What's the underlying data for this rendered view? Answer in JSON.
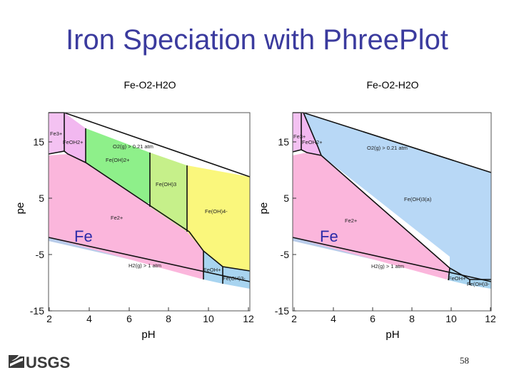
{
  "slide": {
    "title": "Iron Speciation with PhreePlot",
    "page_number": "58",
    "logo_text": "USGS"
  },
  "diagrams": [
    {
      "title": "Fe-O2-H2O",
      "x_label": "pH",
      "y_label": "pe",
      "x_ticks": [
        "2",
        "4",
        "6",
        "8",
        "10",
        "12"
      ],
      "y_ticks": [
        "15",
        "5",
        "-5",
        "-15"
      ],
      "big_label": "Fe",
      "regions": {
        "fe3": "Fe3+",
        "feoh2": "FeOH2+",
        "o2": "O2(g) > 0.21 atm",
        "feoh2p": "Fe(OH)2+",
        "feoh3": "Fe(OH)3",
        "feoh4": "Fe(OH)4-",
        "fe2": "Fe2+",
        "h2": "H2(g) > 1 atm",
        "feohp": "FeOH+",
        "feoh3m": "Fe(OH)3-"
      }
    },
    {
      "title": "Fe-O2-H2O",
      "x_label": "pH",
      "y_label": "pe",
      "x_ticks": [
        "2",
        "4",
        "6",
        "8",
        "10",
        "12"
      ],
      "y_ticks": [
        "15",
        "5",
        "-5",
        "-15"
      ],
      "big_label": "Fe",
      "regions": {
        "fe3": "Fe3+",
        "feoh2": "FeOH2+",
        "o2": "O2(g) > 0.21 atm",
        "feoh3a": "Fe(OH)3(a)",
        "fe2": "Fe2+",
        "h2": "H2(g) > 1 atm",
        "feohp": "FeOH+",
        "feoh3m": "Fe(OH)3-"
      }
    }
  ],
  "colors": {
    "title": "#3b3b9e",
    "fe2": "#fbb6dc",
    "fe3": "#f4c2f2",
    "feoh2": "#f2b8f0",
    "feoh2p": "#8ef08a",
    "feoh3": "#c6f08a",
    "feoh4": "#faf77c",
    "feohp": "#a8d4f0",
    "feoh3a": "#b8d8f6",
    "water_band": "#b8ccea",
    "fe_label": "#2a2aa8"
  }
}
